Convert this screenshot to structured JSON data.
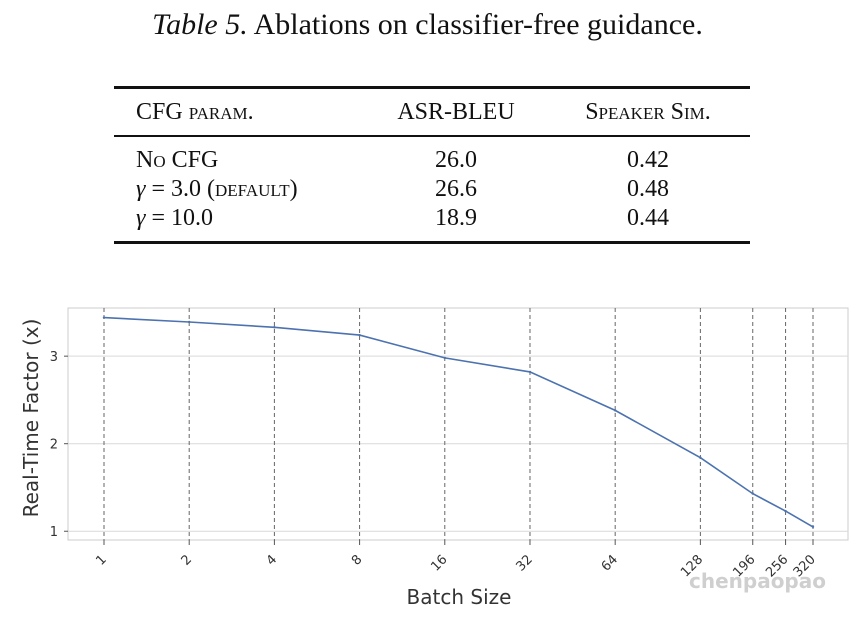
{
  "caption": {
    "label": "Table 5.",
    "text": "Ablations on classifier-free guidance."
  },
  "table": {
    "headers": [
      "CFG param.",
      "ASR-BLEU",
      "Speaker Sim."
    ],
    "rows": [
      {
        "param": "No CFG",
        "asr_bleu": "26.0",
        "speaker_sim": "0.42"
      },
      {
        "param_symbol": "γ",
        "param_value": "= 3.0",
        "param_note": "(default)",
        "asr_bleu": "26.6",
        "speaker_sim": "0.48"
      },
      {
        "param_symbol": "γ",
        "param_value": "= 10.0",
        "asr_bleu": "18.9",
        "speaker_sim": "0.44"
      }
    ]
  },
  "chart_data": {
    "type": "line",
    "xlabel": "Batch Size",
    "ylabel": "Real-Time Factor (x)",
    "x_scale": "log",
    "categories": [
      "1",
      "2",
      "4",
      "8",
      "16",
      "32",
      "64",
      "128",
      "196",
      "256",
      "320"
    ],
    "x": [
      1,
      2,
      4,
      8,
      16,
      32,
      64,
      128,
      196,
      256,
      320
    ],
    "values": [
      3.44,
      3.39,
      3.33,
      3.24,
      2.98,
      2.82,
      2.38,
      1.84,
      1.43,
      1.23,
      1.05
    ],
    "yticks": [
      1,
      2,
      3
    ],
    "ylim": [
      0.9,
      3.55
    ],
    "grid": "x-dashed, y-solid",
    "line_color": "#4C72B0"
  },
  "watermark": "chenpaopao"
}
